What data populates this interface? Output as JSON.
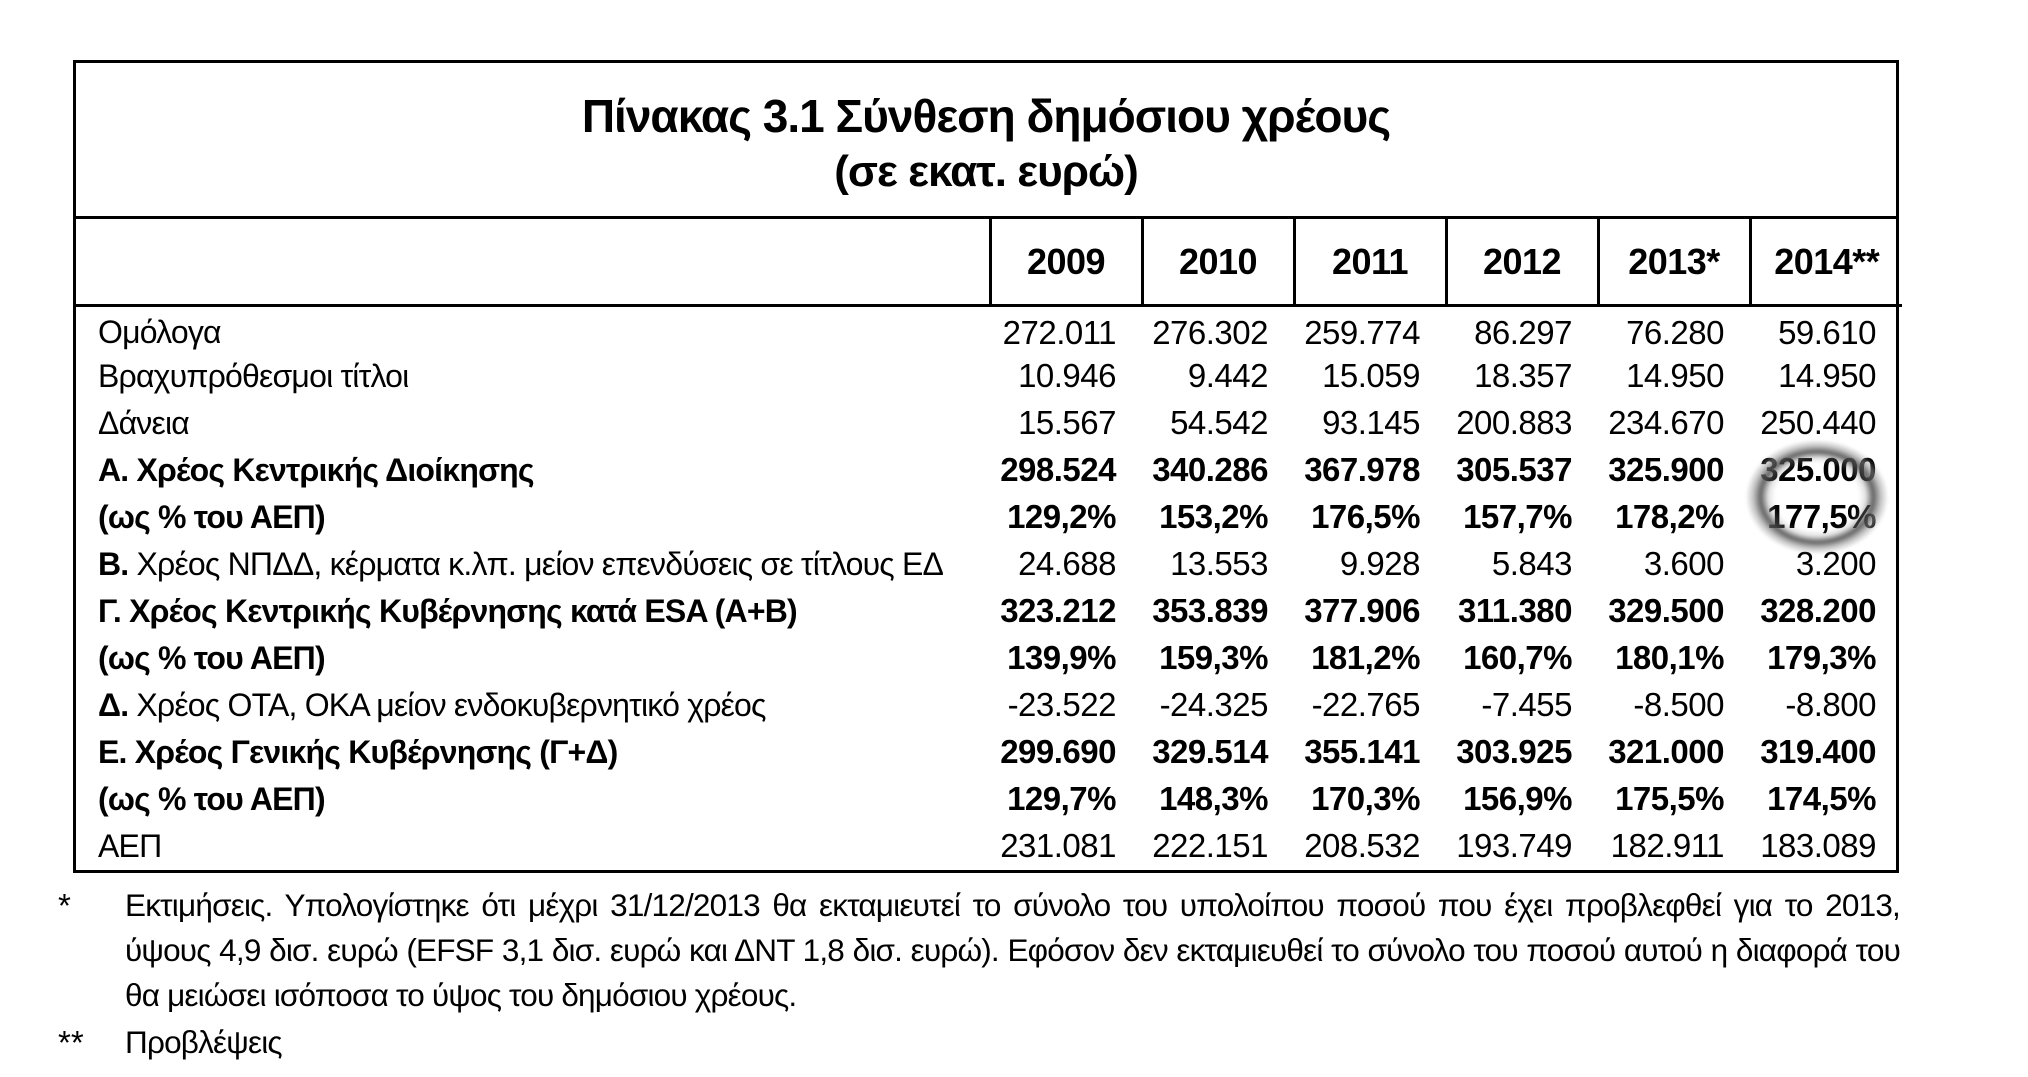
{
  "table": {
    "title": "Πίνακας 3.1 Σύνθεση δημόσιου χρέους",
    "subtitle": "(σε εκατ. ευρώ)",
    "year_headers": [
      "2009",
      "2010",
      "2011",
      "2012",
      "2013*",
      "2014**"
    ],
    "rows": [
      {
        "label": "Ομόλογα",
        "bold": false,
        "values": [
          "272.011",
          "276.302",
          "259.774",
          "86.297",
          "76.280",
          "59.610"
        ]
      },
      {
        "label": "Βραχυπρόθεσμοι τίτλοι",
        "bold": false,
        "values": [
          "10.946",
          "9.442",
          "15.059",
          "18.357",
          "14.950",
          "14.950"
        ]
      },
      {
        "label": "Δάνεια",
        "bold": false,
        "values": [
          "15.567",
          "54.542",
          "93.145",
          "200.883",
          "234.670",
          "250.440"
        ]
      },
      {
        "label": "Α. Χρέος Κεντρικής Διοίκησης",
        "bold": true,
        "values": [
          "298.524",
          "340.286",
          "367.978",
          "305.537",
          "325.900",
          "325.000"
        ]
      },
      {
        "label": "(ως % του ΑΕΠ)",
        "bold": true,
        "values": [
          "129,2%",
          "153,2%",
          "176,5%",
          "157,7%",
          "178,2%",
          "177,5%"
        ]
      },
      {
        "label_prefix": "Β.",
        "label": " Χρέος ΝΠΔΔ, κέρματα κ.λπ. μείον επενδύσεις σε τίτλους ΕΔ",
        "bold": false,
        "values": [
          "24.688",
          "13.553",
          "9.928",
          "5.843",
          "3.600",
          "3.200"
        ]
      },
      {
        "label": "Γ. Χρέος Κεντρικής Κυβέρνησης κατά ESA (Α+Β)",
        "bold": true,
        "values": [
          "323.212",
          "353.839",
          "377.906",
          "311.380",
          "329.500",
          "328.200"
        ]
      },
      {
        "label": "(ως % του ΑΕΠ)",
        "bold": true,
        "values": [
          "139,9%",
          "159,3%",
          "181,2%",
          "160,7%",
          "180,1%",
          "179,3%"
        ]
      },
      {
        "label_prefix": "Δ.",
        "label": " Χρέος ΟΤΑ, ΟΚΑ μείον ενδοκυβερνητικό χρέος",
        "bold": false,
        "values": [
          "-23.522",
          "-24.325",
          "-22.765",
          "-7.455",
          "-8.500",
          "-8.800"
        ]
      },
      {
        "label": "Ε. Χρέος Γενικής Κυβέρνησης (Γ+Δ)",
        "bold": true,
        "values": [
          "299.690",
          "329.514",
          "355.141",
          "303.925",
          "321.000",
          "319.400"
        ]
      },
      {
        "label": "(ως % του ΑΕΠ)",
        "bold": true,
        "values": [
          "129,7%",
          "148,3%",
          "170,3%",
          "156,9%",
          "175,5%",
          "174,5%"
        ]
      },
      {
        "label": "ΑΕΠ",
        "bold": false,
        "values": [
          "231.081",
          "222.151",
          "208.532",
          "193.749",
          "182.911",
          "183.089"
        ]
      }
    ]
  },
  "annotation": {
    "circled_values": [
      "325.000",
      "177,5%"
    ],
    "circled_column": "2014**",
    "circle_color": "#4b4b4b"
  },
  "footnotes": [
    {
      "marker": "*",
      "text": "Εκτιμήσεις. Υπολογίστηκε ότι μέχρι 31/12/2013 θα εκταμιευτεί το σύνολο του υπολοίπου ποσού που έχει προβλεφθεί για το 2013, ύψους 4,9 δισ. ευρώ (EFSF 3,1 δισ. ευρώ και ΔΝΤ 1,8 δισ. ευρώ). Εφόσον δεν εκταμιευθεί το σύνολο του ποσού αυτού η διαφορά του θα μειώσει ισόποσα το ύψος του δημόσιου χρέους."
    },
    {
      "marker": "**",
      "text": "Προβλέψεις"
    }
  ]
}
